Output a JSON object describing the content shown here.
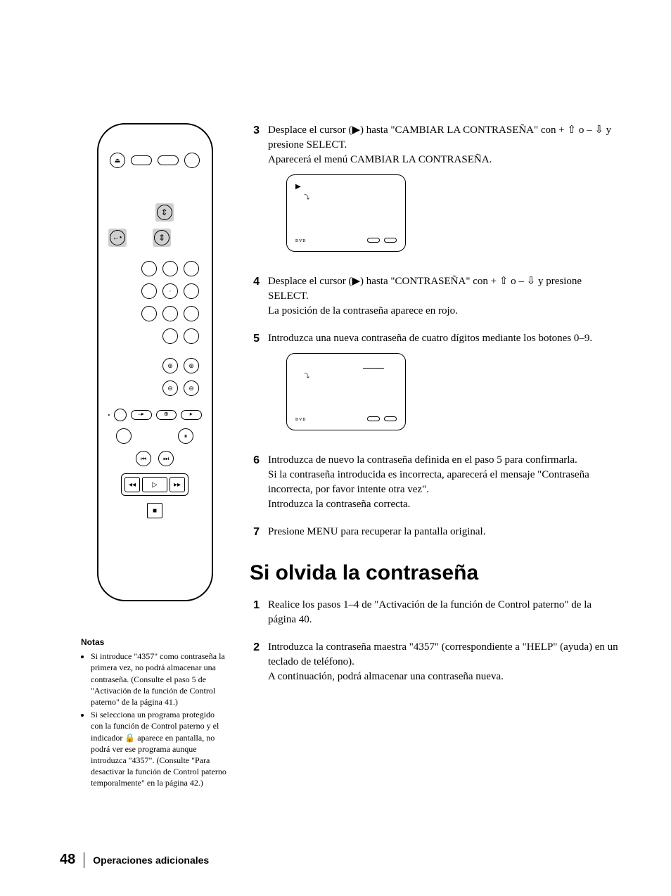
{
  "steps_a": [
    {
      "num": "3",
      "lines": [
        "Desplace el cursor (▶) hasta \"CAMBIAR LA CONTRASEÑA\" con + ⇧ o – ⇩ y presione SELECT.",
        "Aparecerá el menú CAMBIAR LA CONTRASEÑA."
      ],
      "has_screen": true,
      "screen": {
        "cursor": "▶",
        "dash": false
      }
    },
    {
      "num": "4",
      "lines": [
        "Desplace el cursor (▶) hasta \"CONTRASEÑA\" con + ⇧ o – ⇩ y presione SELECT.",
        "La posición de la contraseña aparece en rojo."
      ],
      "has_screen": false
    },
    {
      "num": "5",
      "lines": [
        "Introduzca una nueva contraseña de cuatro dígitos mediante los botones 0–9."
      ],
      "has_screen": true,
      "screen": {
        "cursor": "",
        "dash": true
      }
    },
    {
      "num": "6",
      "lines": [
        "Introduzca de nuevo la contraseña definida en el paso 5 para confirmarla.",
        "Si la contraseña introducida es incorrecta, aparecerá el mensaje \"Contraseña incorrecta, por favor intente otra vez\".",
        "Introduzca la contraseña correcta."
      ],
      "has_screen": false
    },
    {
      "num": "7",
      "lines": [
        "Presione MENU para recuperar la pantalla original."
      ],
      "has_screen": false
    }
  ],
  "heading": "Si olvida la contraseña",
  "steps_b": [
    {
      "num": "1",
      "lines": [
        "Realice los pasos 1–4 de \"Activación de la función de Control paterno\" de la página 40."
      ]
    },
    {
      "num": "2",
      "lines": [
        "Introduzca la contraseña maestra \"4357\" (correspondiente a \"HELP\" (ayuda) en un teclado de teléfono).",
        "A continuación, podrá almacenar una contraseña nueva."
      ]
    }
  ],
  "notes": {
    "title": "Notas",
    "items": [
      "Si introduce \"4357\" como contraseña la primera vez, no podrá almacenar una contraseña. (Consulte el paso 5 de \"Activación de la función de Control paterno\" de la página 41.)",
      "Si selecciona un programa protegido con la función de Control paterno y el indicador 🔒 aparece en pantalla, no podrá ver ese programa aunque introduzca \"4357\". (Consulte \"Para desactivar la función de Control paterno temporalmente\" en la página 42.)"
    ]
  },
  "footer": {
    "page": "48",
    "section": "Operaciones adicionales"
  },
  "screen_labels": {
    "dvd": "ᴅᴠᴅ"
  }
}
